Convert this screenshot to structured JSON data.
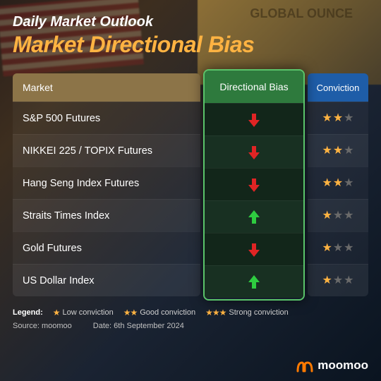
{
  "header": {
    "subtitle": "Daily Market Outlook",
    "title": "Market Directional Bias"
  },
  "columns": {
    "market": "Market",
    "bias": "Directional Bias",
    "conviction": "Conviction"
  },
  "rows": [
    {
      "market": "S&P 500 Futures",
      "bias": "down",
      "conviction": 2
    },
    {
      "market": "NIKKEI 225 / TOPIX Futures",
      "bias": "down",
      "conviction": 2
    },
    {
      "market": "Hang Seng Index Futures",
      "bias": "down",
      "conviction": 2
    },
    {
      "market": "Straits Times Index",
      "bias": "up",
      "conviction": 1
    },
    {
      "market": "Gold Futures",
      "bias": "down",
      "conviction": 1
    },
    {
      "market": "US Dollar Index",
      "bias": "up",
      "conviction": 1
    }
  ],
  "legend": {
    "label": "Legend:",
    "items": [
      {
        "stars": 1,
        "text": "Low conviction"
      },
      {
        "stars": 2,
        "text": "Good conviction"
      },
      {
        "stars": 3,
        "text": "Strong conviction"
      }
    ]
  },
  "footer": {
    "source_label": "Source:",
    "source_value": "moomoo",
    "date_label": "Date:",
    "date_value": "6th September 2024"
  },
  "brand": "moomoo",
  "bg_gold_text": "GLOBAL OUNCE",
  "colors": {
    "title": "#ffb342",
    "bias_border": "#5ac46a",
    "up_arrow": "#2ecc40",
    "down_arrow": "#e02424",
    "star_on": "#ffb342",
    "star_off": "#6a6a6a",
    "market_header": "#8c7448",
    "bias_header": "#2e7a3d",
    "conv_header": "#1e5da8"
  }
}
